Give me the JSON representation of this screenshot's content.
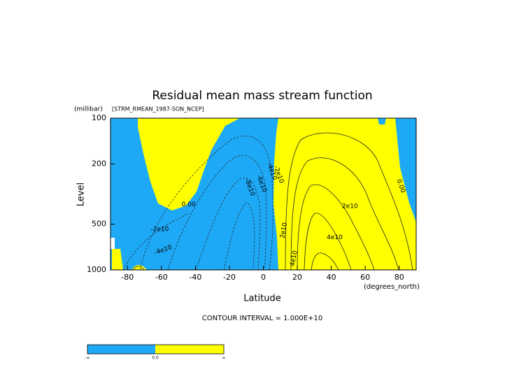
{
  "chart_data": {
    "type": "contour",
    "title": "Residual mean mass stream function",
    "subtitle": "[STRM_RMEAN_1987-SON_NCEP]",
    "y_label": "Level",
    "y_unit": "(millibar)",
    "x_label": "Latitude",
    "x_unit": "(degrees_north)",
    "xlim": [
      -90,
      90
    ],
    "xticks": [
      -80,
      -60,
      -40,
      -20,
      0,
      20,
      40,
      60,
      80
    ],
    "ylim": [
      1000,
      100
    ],
    "yticks": [
      100,
      200,
      500,
      1000
    ],
    "y_log": true,
    "footnote": "CONTOUR INTERVAL = 1.000E+10",
    "negative_color": "#1ea9f7",
    "positive_color": "#ffff00",
    "colorbar_labels": [
      "-∞",
      "0.0",
      "∞"
    ],
    "contour_labels": [
      {
        "text": "0.00",
        "lat": -44,
        "level": 370
      },
      {
        "text": "-2e10",
        "lat": -61,
        "level": 540
      },
      {
        "text": "-4e10",
        "lat": -59,
        "level": 740
      },
      {
        "text": "-8e10",
        "lat": -8,
        "level": 285
      },
      {
        "text": "-6e10",
        "lat": -1,
        "level": 270
      },
      {
        "text": "-4e10",
        "lat": 5,
        "level": 224
      },
      {
        "text": "-2e10",
        "lat": 9,
        "level": 235
      },
      {
        "text": "2e10",
        "lat": 51,
        "level": 380
      },
      {
        "text": "4e10",
        "lat": 42,
        "level": 610
      },
      {
        "text": "2e10",
        "lat": 12,
        "level": 550
      },
      {
        "text": "4e10",
        "lat": 18,
        "level": 840
      },
      {
        "text": "0.00",
        "lat": 81,
        "level": 280
      }
    ]
  }
}
